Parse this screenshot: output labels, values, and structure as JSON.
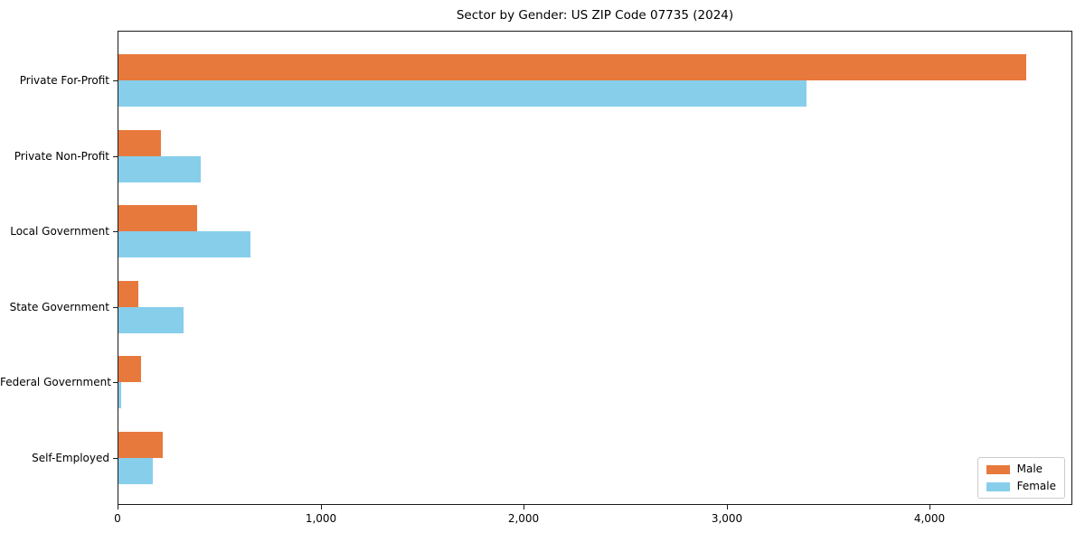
{
  "title": "Sector by Gender: US ZIP Code 07735 (2024)",
  "chart_data": {
    "type": "bar",
    "orientation": "horizontal",
    "title": "Sector by Gender: US ZIP Code 07735 (2024)",
    "categories": [
      "Private For-Profit",
      "Private Non-Profit",
      "Local Government",
      "State Government",
      "Federal Government",
      "Self-Employed"
    ],
    "series": [
      {
        "name": "Male",
        "color": "#E8793D",
        "values": [
          4470,
          207,
          388,
          96,
          111,
          216
        ]
      },
      {
        "name": "Female",
        "color": "#87CEEB",
        "values": [
          3390,
          404,
          649,
          321,
          13,
          168
        ]
      }
    ],
    "xlabel": "",
    "ylabel": "",
    "x_ticks": [
      0,
      1000,
      2000,
      3000,
      4000
    ],
    "x_tick_labels": [
      "0",
      "1,000",
      "2,000",
      "3,000",
      "4,000"
    ],
    "xlim": [
      0,
      4693
    ],
    "grid": false,
    "legend_position": "lower right"
  }
}
